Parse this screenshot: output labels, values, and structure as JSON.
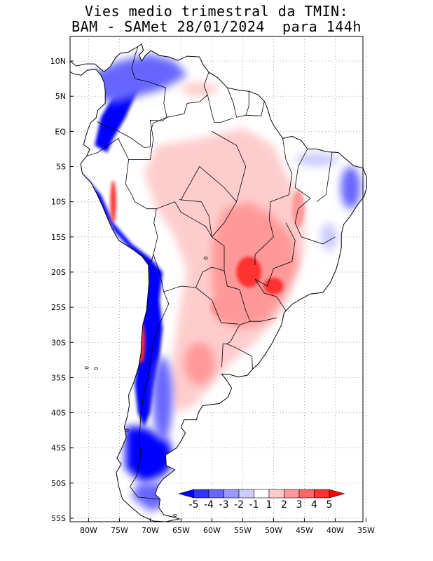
{
  "title": {
    "line1": "Vies medio trimestral da TMIN:",
    "line2": "BAM - SAMet 28/01/2024  para 144h"
  },
  "axes": {
    "lat_ticks": [
      "10N",
      "5N",
      "EQ",
      "5S",
      "10S",
      "15S",
      "20S",
      "25S",
      "30S",
      "35S",
      "40S",
      "45S",
      "50S",
      "55S"
    ],
    "lat_values": [
      10,
      5,
      0,
      -5,
      -10,
      -15,
      -20,
      -25,
      -30,
      -35,
      -40,
      -45,
      -50,
      -55
    ],
    "lon_ticks": [
      "80W",
      "75W",
      "70W",
      "65W",
      "60W",
      "55W",
      "50W",
      "45W",
      "40W",
      "35W"
    ],
    "lon_values": [
      -80,
      -75,
      -70,
      -65,
      -60,
      -55,
      -50,
      -45,
      -40,
      -35
    ],
    "lat_range": [
      -55.5,
      13.5
    ],
    "lon_range": [
      -83,
      -35.5
    ],
    "grid": "dotted"
  },
  "colorbar": {
    "labels": [
      "-5",
      "-4",
      "-3",
      "-2",
      "-1",
      "1",
      "2",
      "3",
      "4",
      "5"
    ],
    "colors": [
      "#0000ff",
      "#3333ff",
      "#6666ff",
      "#9999ff",
      "#ccccff",
      "#ffffff",
      "#ffcccc",
      "#ff9999",
      "#ff6666",
      "#ff3333",
      "#ff0000"
    ]
  },
  "map_colors": {
    "land_base": "#ffffff",
    "strong_cold": "#0000ff",
    "mid_cold": "#6666ff",
    "weak_cold": "#ccccff",
    "weak_warm": "#ffcccc",
    "mid_warm": "#ff9999",
    "strong_warm": "#ff3333"
  }
}
